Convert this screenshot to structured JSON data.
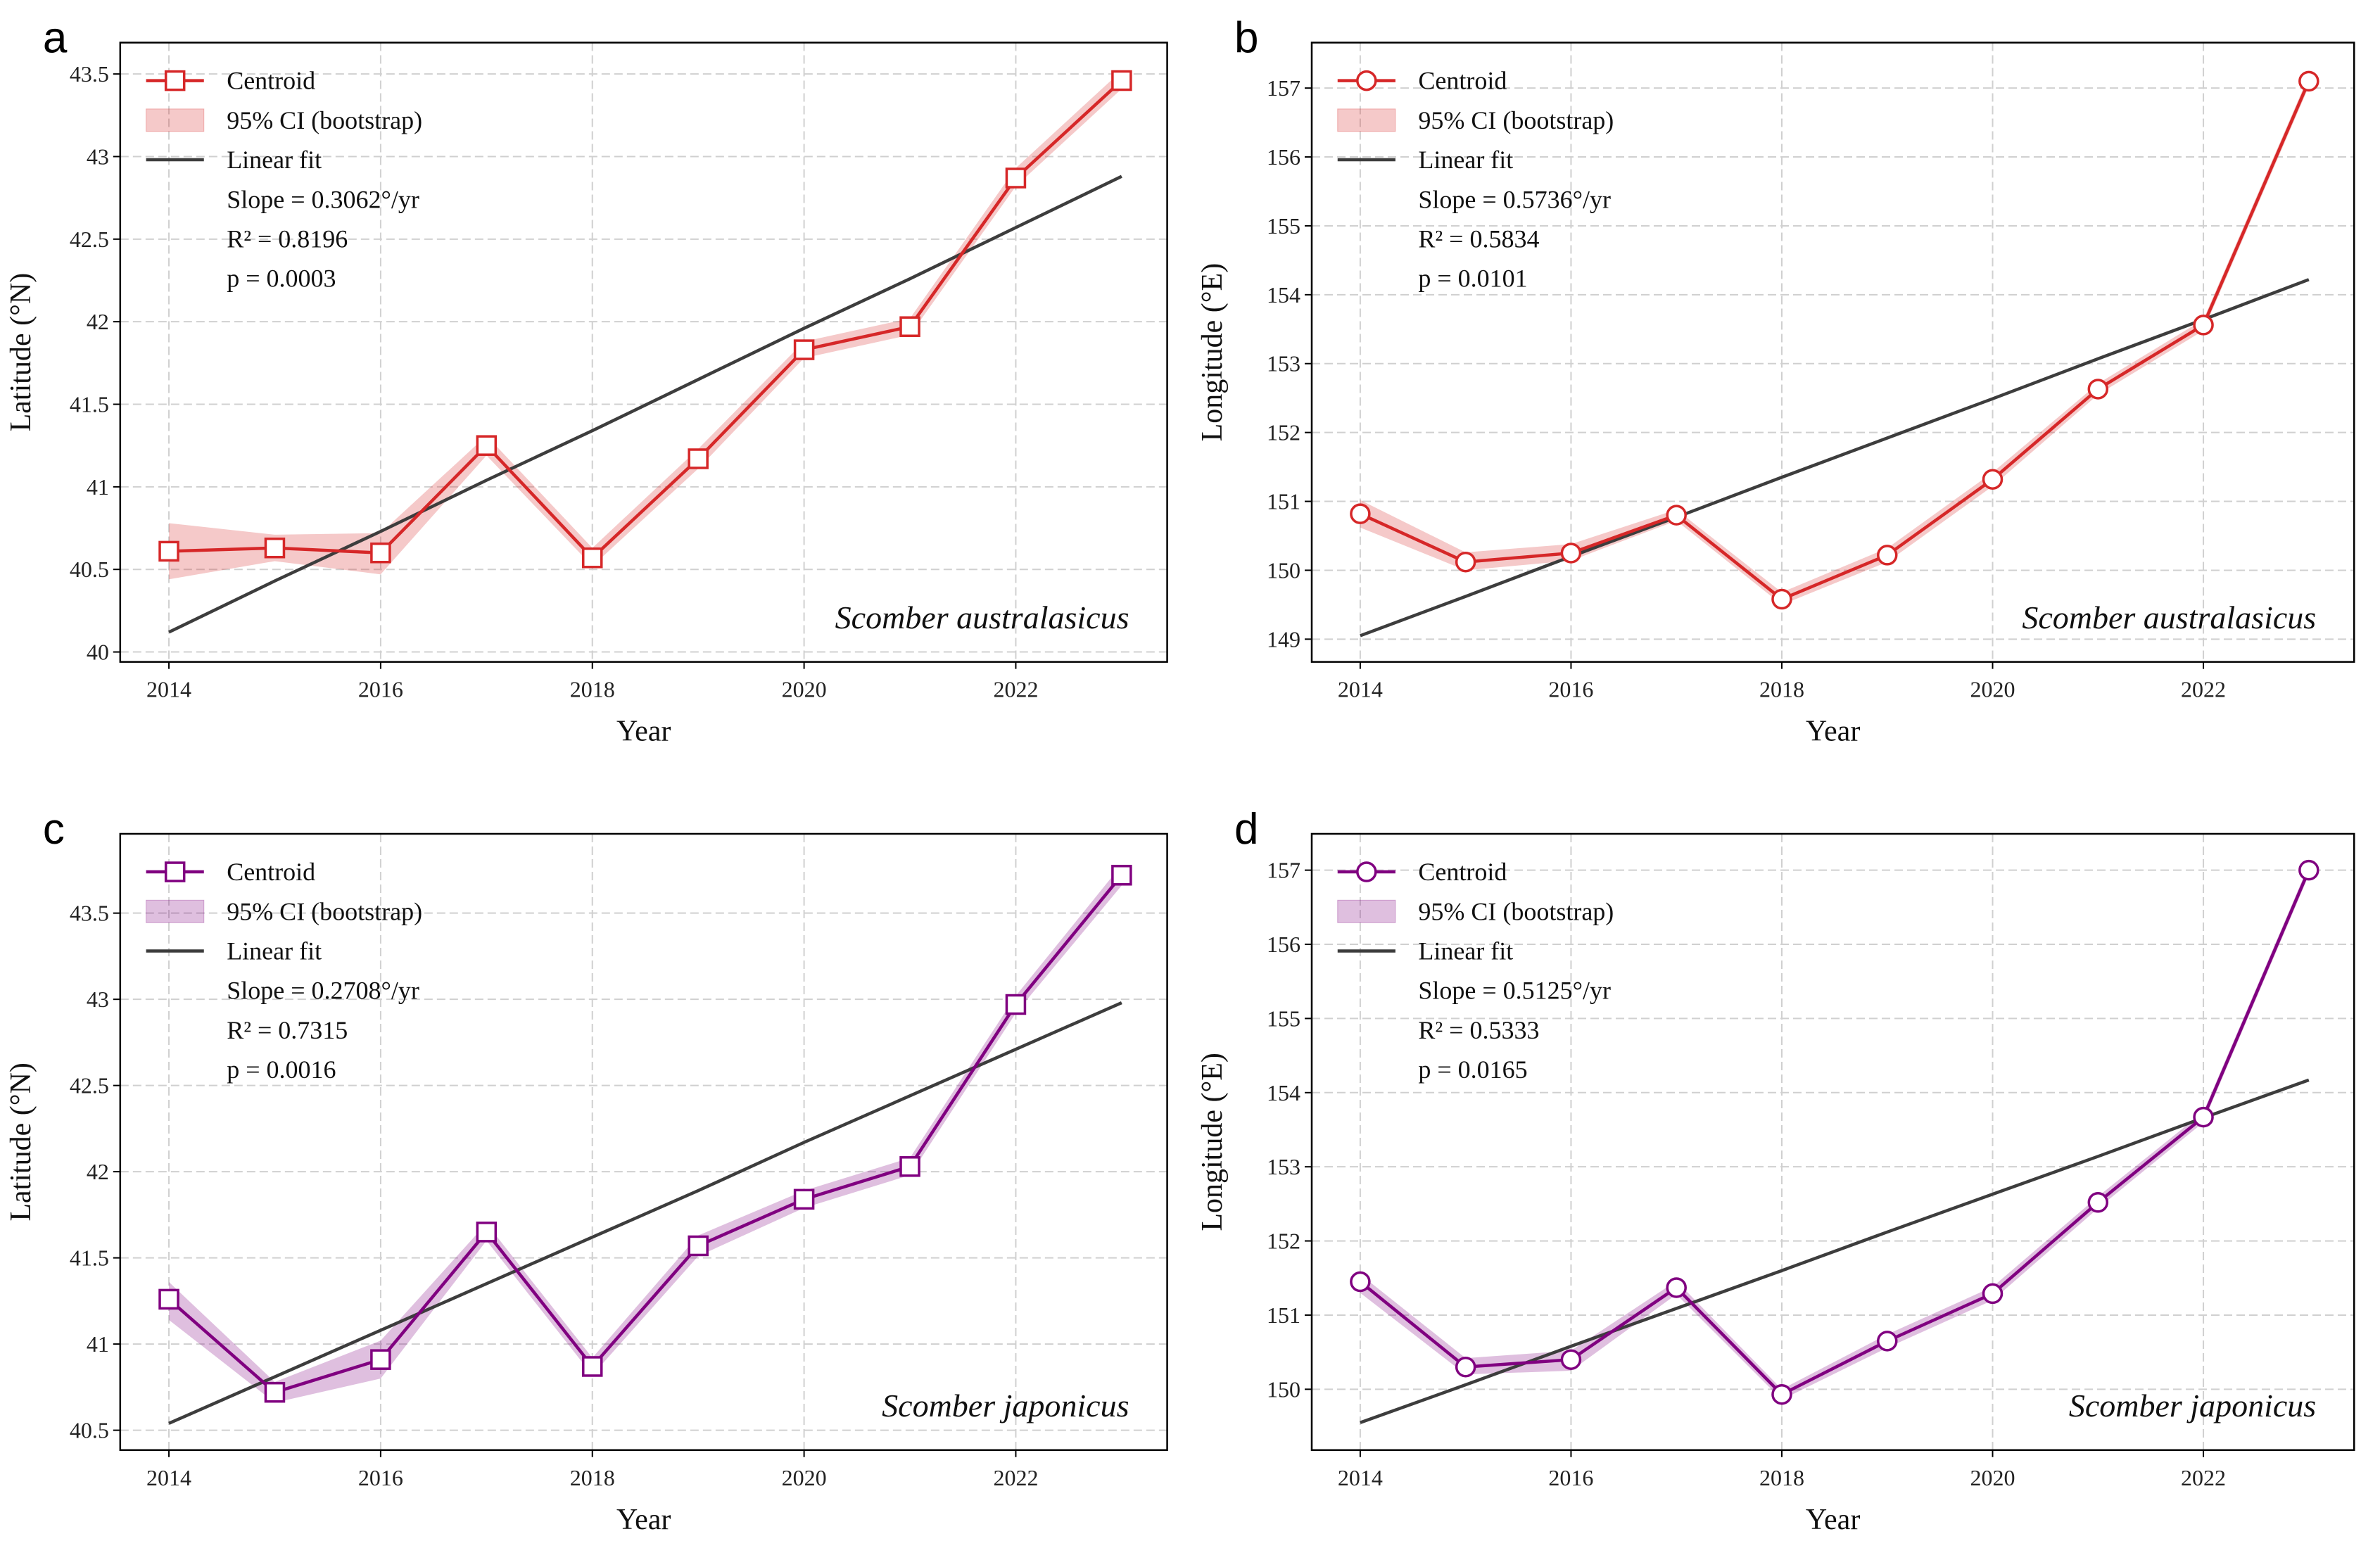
{
  "chart_data": [
    {
      "type": "line",
      "panel": "a",
      "xlabel": "Year",
      "ylabel": "Latitude (°N)",
      "x": [
        2014,
        2015,
        2016,
        2017,
        2018,
        2019,
        2020,
        2021,
        2022,
        2023
      ],
      "xlim": [
        2013.54,
        2023.43
      ],
      "xticks": [
        2014,
        2016,
        2018,
        2020,
        2022
      ],
      "ylim": [
        39.94,
        43.69
      ],
      "yticks": [
        40.0,
        40.5,
        41.0,
        41.5,
        42.0,
        42.5,
        43.0,
        43.5
      ],
      "grid": true,
      "marker": "square",
      "legend": "upper left",
      "series": [
        {
          "name": "Centroid",
          "color": "#d62728",
          "values": [
            40.61,
            40.63,
            40.6,
            41.25,
            40.57,
            41.17,
            41.83,
            41.97,
            42.87,
            43.46
          ]
        },
        {
          "name": "95% CI (bootstrap)",
          "color": "#d62728",
          "lower": [
            40.44,
            40.55,
            40.47,
            41.19,
            40.52,
            41.11,
            41.78,
            41.92,
            42.82,
            43.41
          ],
          "upper": [
            40.78,
            40.71,
            40.72,
            41.31,
            40.63,
            41.23,
            41.88,
            42.02,
            42.93,
            43.52
          ]
        },
        {
          "name": "Linear fit",
          "color": "#3d3d3d",
          "values": [
            40.12,
            40.43,
            40.73,
            41.04,
            41.34,
            41.65,
            41.96,
            42.26,
            42.57,
            42.88
          ]
        }
      ],
      "annotations": [
        "Slope = 0.3062°/yr",
        "R² = 0.8196",
        "p = 0.0003"
      ],
      "species": "Scomber australasicus"
    },
    {
      "type": "line",
      "panel": "b",
      "xlabel": "Year",
      "ylabel": "Longitude (°E)",
      "x": [
        2014,
        2015,
        2016,
        2017,
        2018,
        2019,
        2020,
        2021,
        2022,
        2023
      ],
      "xlim": [
        2013.54,
        2023.43
      ],
      "xticks": [
        2014,
        2016,
        2018,
        2020,
        2022
      ],
      "ylim": [
        148.67,
        157.66
      ],
      "yticks": [
        149,
        150,
        151,
        152,
        153,
        154,
        155,
        156,
        157
      ],
      "grid": true,
      "marker": "circle",
      "legend": "upper left",
      "series": [
        {
          "name": "Centroid",
          "color": "#d62728",
          "values": [
            150.82,
            150.12,
            150.25,
            150.8,
            149.58,
            150.22,
            151.32,
            152.63,
            153.56,
            157.1
          ]
        },
        {
          "name": "95% CI (bootstrap)",
          "color": "#d62728",
          "lower": [
            150.62,
            150.0,
            150.14,
            150.72,
            149.5,
            150.12,
            151.22,
            152.55,
            153.48,
            157.02
          ],
          "upper": [
            151.02,
            150.26,
            150.38,
            150.88,
            149.68,
            150.32,
            151.42,
            152.71,
            153.64,
            157.18
          ]
        },
        {
          "name": "Linear fit",
          "color": "#3d3d3d",
          "values": [
            149.05,
            149.62,
            150.2,
            150.77,
            151.35,
            151.92,
            152.49,
            153.07,
            153.64,
            154.22
          ]
        }
      ],
      "annotations": [
        "Slope = 0.5736°/yr",
        "R² = 0.5834",
        "p = 0.0101"
      ],
      "species": "Scomber australasicus"
    },
    {
      "type": "line",
      "panel": "c",
      "xlabel": "Year",
      "ylabel": "Latitude (°N)",
      "x": [
        2014,
        2015,
        2016,
        2017,
        2018,
        2019,
        2020,
        2021,
        2022,
        2023
      ],
      "xlim": [
        2013.54,
        2023.43
      ],
      "xticks": [
        2014,
        2016,
        2018,
        2020,
        2022
      ],
      "ylim": [
        40.385,
        43.96
      ],
      "yticks": [
        40.5,
        41.0,
        41.5,
        42.0,
        42.5,
        43.0,
        43.5
      ],
      "grid": true,
      "marker": "square",
      "legend": "upper left",
      "series": [
        {
          "name": "Centroid",
          "color": "#800080",
          "values": [
            41.26,
            40.72,
            40.91,
            41.65,
            40.87,
            41.57,
            41.84,
            42.03,
            42.97,
            43.72
          ]
        },
        {
          "name": "95% CI (bootstrap)",
          "color": "#800080",
          "lower": [
            41.14,
            40.66,
            40.8,
            41.6,
            40.82,
            41.51,
            41.79,
            41.98,
            42.92,
            43.66
          ],
          "upper": [
            41.36,
            40.78,
            41.02,
            41.7,
            40.92,
            41.63,
            41.89,
            42.08,
            43.02,
            43.78
          ]
        },
        {
          "name": "Linear fit",
          "color": "#3d3d3d",
          "values": [
            40.54,
            40.81,
            41.08,
            41.35,
            41.62,
            41.89,
            42.17,
            42.44,
            42.71,
            42.98
          ]
        }
      ],
      "annotations": [
        "Slope = 0.2708°/yr",
        "R² = 0.7315",
        "p = 0.0016"
      ],
      "species": "Scomber japonicus"
    },
    {
      "type": "line",
      "panel": "d",
      "xlabel": "Year",
      "ylabel": "Longitude (°E)",
      "x": [
        2014,
        2015,
        2016,
        2017,
        2018,
        2019,
        2020,
        2021,
        2022,
        2023
      ],
      "xlim": [
        2013.54,
        2023.43
      ],
      "xticks": [
        2014,
        2016,
        2018,
        2020,
        2022
      ],
      "ylim": [
        149.18,
        157.49
      ],
      "yticks": [
        150,
        151,
        152,
        153,
        154,
        155,
        156,
        157
      ],
      "grid": true,
      "marker": "circle",
      "legend": "upper left",
      "series": [
        {
          "name": "Centroid",
          "color": "#800080",
          "values": [
            151.45,
            150.3,
            150.4,
            151.37,
            149.93,
            150.65,
            151.29,
            152.52,
            153.67,
            157.0
          ]
        },
        {
          "name": "95% CI (bootstrap)",
          "color": "#800080",
          "lower": [
            151.3,
            150.2,
            150.25,
            151.28,
            149.86,
            150.56,
            151.2,
            152.44,
            153.6,
            156.93
          ],
          "upper": [
            151.55,
            150.42,
            150.52,
            151.46,
            150.0,
            150.74,
            151.38,
            152.6,
            153.74,
            157.07
          ]
        },
        {
          "name": "Linear fit",
          "color": "#3d3d3d",
          "values": [
            149.55,
            150.06,
            150.58,
            151.09,
            151.6,
            152.12,
            152.63,
            153.14,
            153.66,
            154.17
          ]
        }
      ],
      "annotations": [
        "Slope = 0.5125°/yr",
        "R² = 0.5333",
        "p = 0.0165"
      ],
      "species": "Scomber japonicus"
    }
  ]
}
